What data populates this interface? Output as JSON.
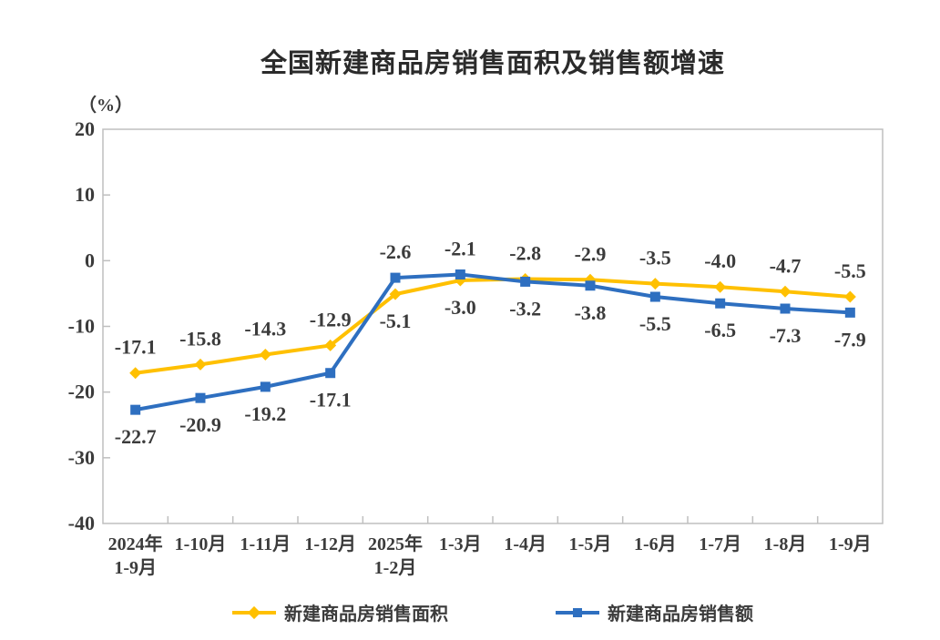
{
  "chart_data": {
    "type": "line",
    "title": "全国新建商品房销售面积及销售额增速",
    "unit_label": "（%）",
    "categories": [
      [
        "2024年",
        "1-9月"
      ],
      [
        "1-10月"
      ],
      [
        "1-11月"
      ],
      [
        "1-12月"
      ],
      [
        "2025年",
        "1-2月"
      ],
      [
        "1-3月"
      ],
      [
        "1-4月"
      ],
      [
        "1-5月"
      ],
      [
        "1-6月"
      ],
      [
        "1-7月"
      ],
      [
        "1-8月"
      ],
      [
        "1-9月"
      ]
    ],
    "series": [
      {
        "name": "新建商品房销售面积",
        "marker": "diamond",
        "color": "#FFC000",
        "values": [
          -17.1,
          -15.8,
          -14.3,
          -12.9,
          -5.1,
          -3.0,
          -2.8,
          -2.9,
          -3.5,
          -4.0,
          -4.7,
          -5.5
        ]
      },
      {
        "name": "新建商品房销售额",
        "marker": "square",
        "color": "#2E6FC0",
        "values": [
          -22.7,
          -20.9,
          -19.2,
          -17.1,
          -2.6,
          -2.1,
          -3.2,
          -3.8,
          -5.5,
          -6.5,
          -7.3,
          -7.9
        ]
      }
    ],
    "ylim": [
      -40,
      20
    ],
    "yticks": [
      20,
      10,
      0,
      -10,
      -20,
      -30,
      -40
    ],
    "grid": false,
    "legend_position": "bottom",
    "axis_color": "#BFBFBF",
    "label_color": "#3B3B3B",
    "data_label_decimals": 1
  }
}
